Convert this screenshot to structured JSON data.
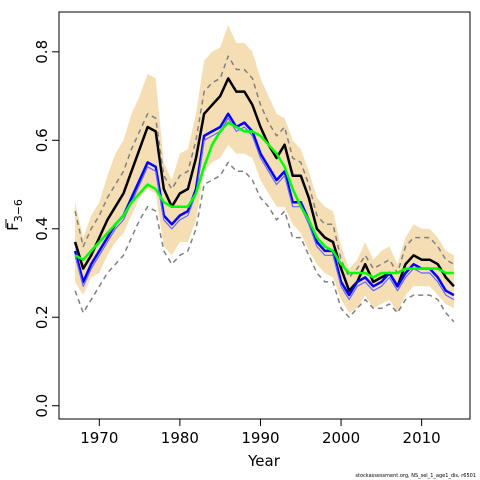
{
  "chart_data": {
    "type": "line",
    "xlabel": "Year",
    "ylabel": "F",
    "ylabel_subscript": "3−6",
    "xlim": [
      1965,
      2016
    ],
    "ylim": [
      -0.03,
      0.89
    ],
    "xticks": [
      1970,
      1980,
      1990,
      2000,
      2010
    ],
    "yticks": [
      0.0,
      0.2,
      0.4,
      0.6,
      0.8
    ],
    "ytick_labels": [
      "0.0",
      "0.2",
      "0.4",
      "0.6",
      "0.8"
    ],
    "footer": "stockassessment.org, NS_sel_1_age1_dis, r6501",
    "colors": {
      "band": "#f5deb3",
      "black": "#000000",
      "blue": "#0000ff",
      "lightblue": "#6666ff",
      "green": "#00ff00",
      "dashed": "#808080"
    },
    "x": [
      1967,
      1968,
      1969,
      1970,
      1971,
      1972,
      1973,
      1974,
      1975,
      1976,
      1977,
      1978,
      1979,
      1980,
      1981,
      1982,
      1983,
      1984,
      1985,
      1986,
      1987,
      1988,
      1989,
      1990,
      1991,
      1992,
      1993,
      1994,
      1995,
      1996,
      1997,
      1998,
      1999,
      2000,
      2001,
      2002,
      2003,
      2004,
      2005,
      2006,
      2007,
      2008,
      2009,
      2010,
      2011,
      2012,
      2013,
      2014
    ],
    "band_upper": [
      0.46,
      0.38,
      0.43,
      0.46,
      0.52,
      0.57,
      0.6,
      0.66,
      0.7,
      0.75,
      0.74,
      0.55,
      0.51,
      0.57,
      0.58,
      0.66,
      0.78,
      0.8,
      0.81,
      0.86,
      0.82,
      0.82,
      0.8,
      0.74,
      0.7,
      0.66,
      0.65,
      0.6,
      0.58,
      0.53,
      0.47,
      0.45,
      0.44,
      0.36,
      0.31,
      0.33,
      0.37,
      0.33,
      0.35,
      0.36,
      0.32,
      0.38,
      0.41,
      0.4,
      0.4,
      0.38,
      0.35,
      0.34
    ],
    "band_lower": [
      0.28,
      0.25,
      0.29,
      0.3,
      0.34,
      0.37,
      0.39,
      0.43,
      0.47,
      0.49,
      0.48,
      0.36,
      0.34,
      0.37,
      0.37,
      0.42,
      0.53,
      0.55,
      0.56,
      0.59,
      0.57,
      0.57,
      0.56,
      0.51,
      0.48,
      0.45,
      0.45,
      0.41,
      0.39,
      0.35,
      0.32,
      0.3,
      0.29,
      0.24,
      0.21,
      0.22,
      0.25,
      0.22,
      0.23,
      0.24,
      0.21,
      0.25,
      0.27,
      0.27,
      0.27,
      0.25,
      0.23,
      0.22
    ],
    "series": [
      {
        "values": [
          0.37,
          0.31,
          0.34,
          0.38,
          0.42,
          0.45,
          0.48,
          0.53,
          0.58,
          0.63,
          0.62,
          0.49,
          0.45,
          0.48,
          0.49,
          0.56,
          0.66,
          0.68,
          0.7,
          0.74,
          0.71,
          0.71,
          0.68,
          0.63,
          0.59,
          0.56,
          0.59,
          0.52,
          0.52,
          0.47,
          0.4,
          0.38,
          0.37,
          0.31,
          0.26,
          0.28,
          0.32,
          0.28,
          0.29,
          0.3,
          0.27,
          0.32,
          0.34,
          0.33,
          0.33,
          0.32,
          0.29,
          0.27
        ],
        "color": "#000000",
        "width": 2.5,
        "dash": ""
      },
      {
        "values": [
          0.35,
          0.28,
          0.32,
          0.35,
          0.38,
          0.41,
          0.43,
          0.47,
          0.51,
          0.55,
          0.54,
          0.43,
          0.41,
          0.43,
          0.44,
          0.49,
          0.61,
          0.62,
          0.63,
          0.66,
          0.63,
          0.64,
          0.62,
          0.57,
          0.54,
          0.51,
          0.53,
          0.46,
          0.46,
          0.42,
          0.37,
          0.35,
          0.35,
          0.28,
          0.25,
          0.28,
          0.29,
          0.27,
          0.28,
          0.3,
          0.27,
          0.3,
          0.32,
          0.31,
          0.31,
          0.29,
          0.26,
          0.25
        ],
        "color": "#0000ff",
        "width": 2.5,
        "dash": ""
      },
      {
        "values": [
          0.34,
          0.27,
          0.31,
          0.34,
          0.37,
          0.4,
          0.42,
          0.46,
          0.5,
          0.54,
          0.53,
          0.42,
          0.4,
          0.42,
          0.43,
          0.48,
          0.6,
          0.61,
          0.62,
          0.65,
          0.62,
          0.63,
          0.61,
          0.56,
          0.53,
          0.5,
          0.52,
          0.45,
          0.45,
          0.41,
          0.36,
          0.34,
          0.34,
          0.27,
          0.24,
          0.27,
          0.28,
          0.26,
          0.27,
          0.29,
          0.26,
          0.29,
          0.31,
          0.3,
          0.3,
          0.28,
          0.25,
          0.24
        ],
        "color": "#6666ff",
        "width": 1.2,
        "dash": ""
      },
      {
        "values": [
          0.26,
          0.21,
          0.24,
          0.27,
          0.3,
          0.32,
          0.34,
          0.38,
          0.42,
          0.45,
          0.44,
          0.35,
          0.32,
          0.34,
          0.35,
          0.4,
          0.5,
          0.51,
          0.52,
          0.55,
          0.53,
          0.53,
          0.51,
          0.47,
          0.45,
          0.42,
          0.44,
          0.38,
          0.38,
          0.34,
          0.3,
          0.28,
          0.28,
          0.22,
          0.2,
          0.22,
          0.24,
          0.22,
          0.22,
          0.23,
          0.21,
          0.24,
          0.25,
          0.25,
          0.25,
          0.24,
          0.21,
          0.19
        ],
        "color": "#808080",
        "width": 1.5,
        "dash": "5,4"
      },
      {
        "values": [
          0.44,
          0.36,
          0.4,
          0.43,
          0.47,
          0.5,
          0.53,
          0.58,
          0.62,
          0.66,
          0.65,
          0.52,
          0.49,
          0.52,
          0.53,
          0.6,
          0.71,
          0.73,
          0.74,
          0.79,
          0.76,
          0.76,
          0.74,
          0.68,
          0.64,
          0.61,
          0.63,
          0.56,
          0.55,
          0.5,
          0.43,
          0.41,
          0.41,
          0.33,
          0.29,
          0.31,
          0.34,
          0.31,
          0.32,
          0.33,
          0.3,
          0.36,
          0.38,
          0.38,
          0.38,
          0.36,
          0.33,
          0.32
        ],
        "color": "#808080",
        "width": 1.5,
        "dash": "5,4"
      },
      {
        "values": [
          0.34,
          0.33,
          0.35,
          0.37,
          0.39,
          0.41,
          0.43,
          0.46,
          0.48,
          0.5,
          0.49,
          0.46,
          0.45,
          0.45,
          0.45,
          0.48,
          0.54,
          0.59,
          0.62,
          0.64,
          0.63,
          0.62,
          0.62,
          0.61,
          0.59,
          0.57,
          0.54,
          0.49,
          0.45,
          0.42,
          0.38,
          0.36,
          0.35,
          0.32,
          0.3,
          0.3,
          0.3,
          0.29,
          0.3,
          0.3,
          0.3,
          0.31,
          0.31,
          0.31,
          0.31,
          0.31,
          0.3,
          0.3
        ],
        "color": "#00ff00",
        "width": 2.5,
        "dash": ""
      }
    ]
  }
}
